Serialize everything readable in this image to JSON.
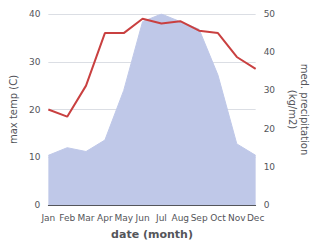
{
  "chart_data": {
    "type": "line",
    "categories": [
      "Jan",
      "Feb",
      "Mar",
      "Apr",
      "May",
      "Jun",
      "Jul",
      "Aug",
      "Sep",
      "Oct",
      "Nov",
      "Dec"
    ],
    "xlabel": "date (month)",
    "ylabel": "max temp (C)",
    "y2label": "med. precipitation\n(kg/m2)",
    "ylim": [
      0,
      40
    ],
    "yticks": [
      0,
      10,
      20,
      30,
      40
    ],
    "y2lim": [
      0,
      50
    ],
    "y2ticks": [
      0,
      10,
      20,
      30,
      40,
      50
    ],
    "grid": true,
    "series": [
      {
        "type": "area",
        "axis": "y2",
        "color": "#bfc8e8",
        "values": [
          13,
          15,
          14,
          17,
          30,
          48,
          50,
          48,
          46,
          34,
          16,
          13
        ]
      },
      {
        "type": "line",
        "color": "#c94040",
        "values": [
          20,
          18.5,
          25,
          36,
          36,
          39,
          38,
          38.5,
          36.5,
          36,
          31,
          28.5
        ]
      }
    ]
  }
}
